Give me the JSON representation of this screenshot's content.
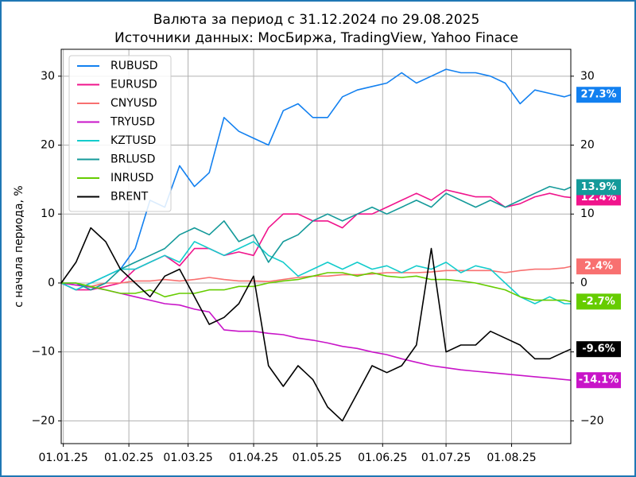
{
  "chart_data": {
    "type": "line",
    "title": "Валюта за период с 31.12.2024 по 29.08.2025",
    "subtitle": "Источники данных: МосБиржа, TradingView, Yahoo Finace",
    "y_label": "с начала периода, %",
    "x": [
      "2024-12-31",
      "2025-01-07",
      "2025-01-14",
      "2025-01-21",
      "2025-01-28",
      "2025-02-04",
      "2025-02-11",
      "2025-02-18",
      "2025-02-25",
      "2025-03-04",
      "2025-03-11",
      "2025-03-18",
      "2025-03-25",
      "2025-04-01",
      "2025-04-08",
      "2025-04-15",
      "2025-04-22",
      "2025-04-29",
      "2025-05-06",
      "2025-05-13",
      "2025-05-20",
      "2025-05-27",
      "2025-06-03",
      "2025-06-10",
      "2025-06-17",
      "2025-06-24",
      "2025-07-01",
      "2025-07-08",
      "2025-07-15",
      "2025-07-22",
      "2025-07-29",
      "2025-08-05",
      "2025-08-12",
      "2025-08-19",
      "2025-08-26",
      "2025-08-29"
    ],
    "xlim": [
      "2024-12-31",
      "2025-08-29"
    ],
    "xticks": [
      {
        "value": "2025-01-01",
        "label": "01.01.25"
      },
      {
        "value": "2025-02-01",
        "label": "01.02.25"
      },
      {
        "value": "2025-03-01",
        "label": "01.03.25"
      },
      {
        "value": "2025-04-01",
        "label": "01.04.25"
      },
      {
        "value": "2025-05-01",
        "label": "01.05.25"
      },
      {
        "value": "2025-06-01",
        "label": "01.06.25"
      },
      {
        "value": "2025-07-01",
        "label": "01.07.25"
      },
      {
        "value": "2025-08-01",
        "label": "01.08.25"
      }
    ],
    "ylim": [
      -23.3,
      33.9
    ],
    "yticks": [
      {
        "value": -20,
        "label": "−20"
      },
      {
        "value": -10,
        "label": "−10"
      },
      0,
      10,
      20,
      30
    ],
    "y2ticks": [
      {
        "value": -20,
        "label": "−20"
      },
      {
        "value": -10,
        "label": "−10"
      },
      0,
      10,
      20,
      30
    ],
    "grid": true,
    "legend": "upper left",
    "series": [
      {
        "name": "RUBUSD",
        "color": "#1280f0",
        "end_label": "27.3%",
        "values": [
          0,
          -1,
          0,
          1,
          2,
          5,
          12,
          11,
          17,
          14,
          16,
          24,
          22,
          21,
          20,
          25,
          26,
          24,
          24,
          27,
          28,
          28.5,
          29,
          30.5,
          29,
          30,
          31,
          30.5,
          30.5,
          30,
          29,
          26,
          28,
          27.5,
          27,
          27.3
        ]
      },
      {
        "name": "EURUSD",
        "color": "#f0148c",
        "end_label": "12.4%",
        "values": [
          0,
          -1,
          -1,
          -0.5,
          0,
          2,
          3,
          4,
          2.5,
          5,
          5,
          4,
          4.5,
          4,
          8,
          10,
          10,
          9,
          9,
          8,
          10,
          10,
          11,
          12,
          13,
          12,
          13.5,
          13,
          12.5,
          12.5,
          11,
          11.5,
          12.5,
          13,
          12.5,
          12.4
        ]
      },
      {
        "name": "CNYUSD",
        "color": "#f87070",
        "end_label": "2.4%",
        "values": [
          0,
          -0.3,
          -0.5,
          0,
          0,
          0.3,
          0.3,
          0.5,
          0.3,
          0.5,
          0.8,
          0.5,
          0.3,
          0.3,
          0.2,
          0.5,
          0.8,
          1,
          1,
          1.2,
          1.2,
          1.3,
          1.5,
          1.5,
          1.5,
          1.6,
          1.8,
          1.8,
          1.8,
          1.8,
          1.5,
          1.8,
          2,
          2,
          2.2,
          2.4
        ]
      },
      {
        "name": "TRYUSD",
        "color": "#c814c8",
        "end_label": "-14.1%",
        "values": [
          0,
          -0.3,
          -0.6,
          -1,
          -1.5,
          -2,
          -2.5,
          -3,
          -3.2,
          -3.8,
          -4.2,
          -6.8,
          -7,
          -7,
          -7.3,
          -7.5,
          -8,
          -8.3,
          -8.7,
          -9.2,
          -9.5,
          -10,
          -10.4,
          -11,
          -11.5,
          -12,
          -12.3,
          -12.6,
          -12.8,
          -13,
          -13.2,
          -13.4,
          -13.6,
          -13.8,
          -14,
          -14.1
        ]
      },
      {
        "name": "KZTUSD",
        "color": "#14cccc",
        "values": [
          0,
          -1,
          0,
          1,
          2,
          2,
          3,
          4,
          3,
          6,
          5,
          4,
          5,
          6,
          4,
          3,
          1,
          2,
          3,
          2,
          3,
          2,
          2.5,
          1.5,
          2.5,
          2,
          3,
          1.5,
          2.5,
          2,
          0,
          -2,
          -3,
          -2,
          -3,
          -3
        ]
      },
      {
        "name": "BRLUSD",
        "color": "#149a9a",
        "end_label": "13.9%",
        "values": [
          0,
          0,
          -1,
          0,
          2,
          3,
          4,
          5,
          7,
          8,
          7,
          9,
          6,
          7,
          3,
          6,
          7,
          9,
          10,
          9,
          10,
          11,
          10,
          11,
          12,
          11,
          13,
          12,
          11,
          12,
          11,
          12,
          13,
          14,
          13.5,
          13.9
        ]
      },
      {
        "name": "INRUSD",
        "color": "#66cc00",
        "end_label": "-2.7%",
        "values": [
          0,
          0,
          -0.5,
          -1,
          -1.5,
          -1.5,
          -1,
          -2,
          -1.5,
          -1.5,
          -1,
          -1,
          -0.5,
          -0.5,
          0,
          0.3,
          0.5,
          1,
          1.5,
          1.5,
          1,
          1.5,
          1,
          0.8,
          1,
          0.5,
          0.5,
          0.3,
          0,
          -0.5,
          -1,
          -2,
          -2.5,
          -2.5,
          -2.5,
          -2.7
        ]
      },
      {
        "name": "BRENT",
        "color": "#000000",
        "end_label": "-9.6%",
        "values": [
          0,
          3,
          8,
          6,
          2,
          0,
          -2,
          1,
          2,
          -2,
          -6,
          -5,
          -3,
          1,
          -12,
          -15,
          -12,
          -14,
          -18,
          -20,
          -16,
          -12,
          -13,
          -12,
          -9,
          5,
          -10,
          -9,
          -9,
          -7,
          -8,
          -9,
          -11,
          -11,
          -10,
          -9.6
        ]
      }
    ]
  }
}
